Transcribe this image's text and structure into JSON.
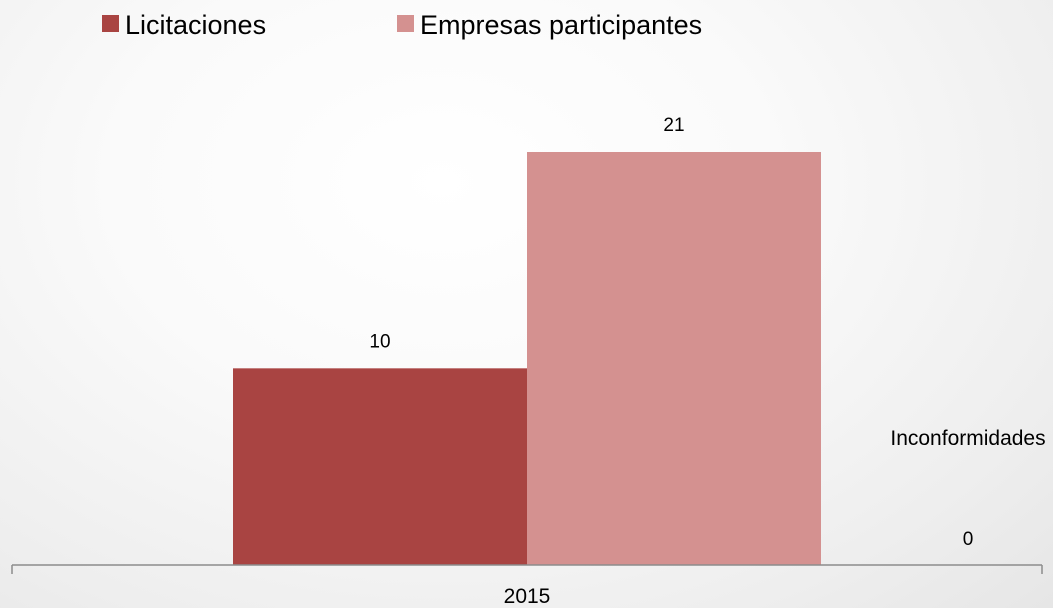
{
  "chart_data": {
    "type": "bar",
    "categories": [
      "2015"
    ],
    "series": [
      {
        "name": "Licitaciones",
        "values": [
          10
        ],
        "color": "#a94442"
      },
      {
        "name": "Empresas participantes",
        "values": [
          21
        ],
        "color": "#d49190"
      },
      {
        "name": "Inconformidades",
        "values": [
          0
        ],
        "color": "#d9d9d9"
      }
    ],
    "ylim": [
      0,
      21
    ],
    "grid": false,
    "legend_position": "top-left",
    "legend_series": [
      0,
      1
    ],
    "inline_label_series": 2,
    "axis_color": "#8c8c8c"
  }
}
